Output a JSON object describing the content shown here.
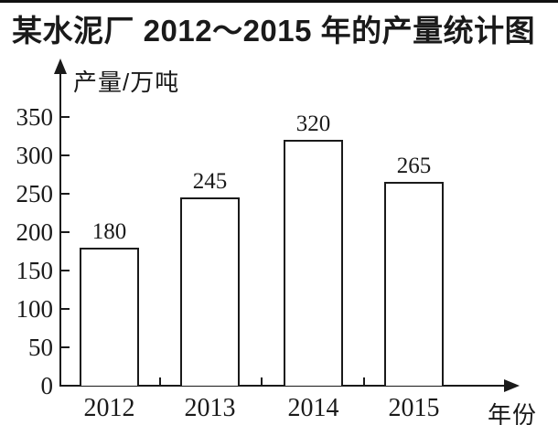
{
  "chart_data": {
    "type": "bar",
    "title": "某水泥厂 2012～2015 年的产量统计图",
    "categories": [
      "2012",
      "2013",
      "2014",
      "2015"
    ],
    "values": [
      180,
      245,
      320,
      265
    ],
    "value_labels": [
      "180",
      "245",
      "320",
      "265"
    ],
    "xlabel": "年份",
    "ylabel": "产量/万吨",
    "yticks": [
      0,
      50,
      100,
      150,
      200,
      250,
      300,
      350
    ],
    "ylim": [
      0,
      380
    ],
    "grid": false,
    "legend": "none",
    "bar_fill_color": "#ffffff",
    "bar_border_color": "#1a1a1a",
    "axis_color": "#1a1a1a",
    "background_color": "#ffffff"
  }
}
